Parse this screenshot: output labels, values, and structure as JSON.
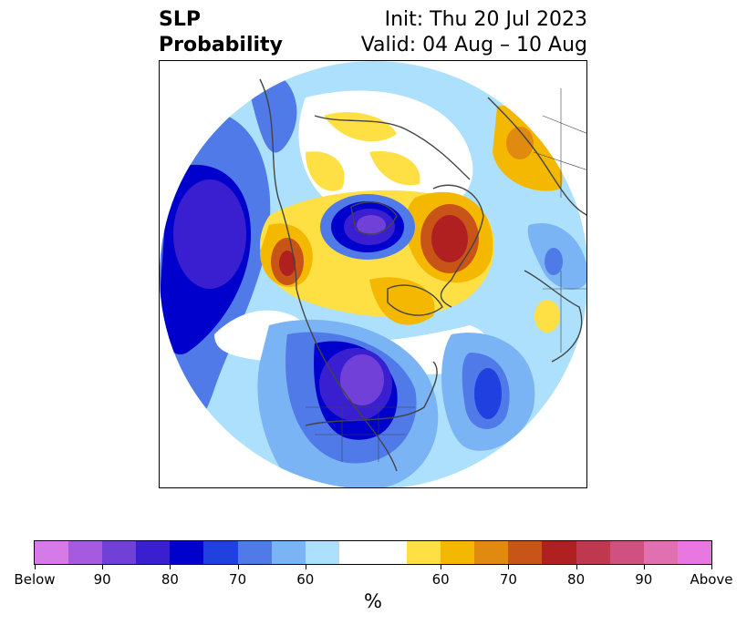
{
  "header": {
    "title_line1": "SLP",
    "title_line2": "Probability",
    "init_label": "Init: Thu 20 Jul 2023",
    "valid_label": "Valid: 04 Aug – 10 Aug"
  },
  "colorbar": {
    "unit_label": "%",
    "colors": [
      "#d67ae8",
      "#a65ae0",
      "#7040d8",
      "#3a1fd0",
      "#0000cc",
      "#2040e0",
      "#4f7ae8",
      "#7ab4f4",
      "#ade0fc",
      "#ffffff",
      "#ffffff",
      "#ffe044",
      "#f5b800",
      "#e08a10",
      "#c85418",
      "#b02020",
      "#c03850",
      "#d05080",
      "#e070b0",
      "#e878e0"
    ],
    "ticks": [
      "Below",
      "90",
      "80",
      "70",
      "60",
      "60",
      "70",
      "80",
      "90",
      "Above"
    ],
    "tick_positions": [
      0,
      2,
      4,
      6,
      8,
      12,
      14,
      16,
      18,
      20
    ]
  },
  "map": {
    "projection": "north-polar-stereographic",
    "colors": {
      "below_strong": "#7040d8",
      "below_mid": "#0000cc",
      "below_weak": "#4f7ae8",
      "below_light": "#ade0fc",
      "above_light": "#ffe044",
      "above_mid": "#f5b800",
      "above_strong": "#c85418",
      "above_peak": "#b02020",
      "coast": "#444444"
    }
  }
}
